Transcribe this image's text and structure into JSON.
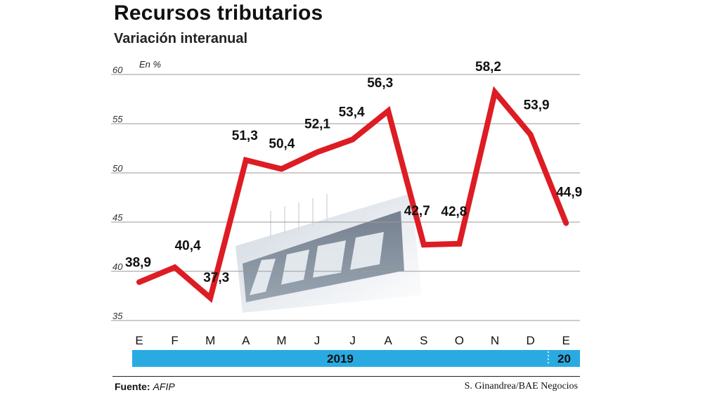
{
  "title": "Recursos tributarios",
  "subtitle": "Variación interanual",
  "unit_label": "En %",
  "footer": {
    "source_label": "Fuente:",
    "source_value": "AFIP",
    "credit": "S. Ginandrea/BAE Negocios"
  },
  "colors": {
    "line": "#dd1c24",
    "year_band": "#29abe2",
    "grid": "#9a9a9a",
    "text": "#111111"
  },
  "chart_data": {
    "type": "line",
    "title": "Recursos tributarios",
    "subtitle": "Variación interanual",
    "ylabel": "En %",
    "ylim": [
      35,
      60
    ],
    "yticks": [
      35,
      40,
      45,
      50,
      55,
      60
    ],
    "categories": [
      "E",
      "F",
      "M",
      "A",
      "M",
      "J",
      "J",
      "A",
      "S",
      "O",
      "N",
      "D",
      "E"
    ],
    "values": [
      38.9,
      40.4,
      37.3,
      51.3,
      50.4,
      52.1,
      53.4,
      56.3,
      42.7,
      42.8,
      58.2,
      53.9,
      44.9
    ],
    "value_labels": [
      "38,9",
      "40,4",
      "37,3",
      "51,3",
      "50,4",
      "52,1",
      "53,4",
      "56,3",
      "42,7",
      "42,8",
      "58,2",
      "53,9",
      "44,9"
    ],
    "year_groups": [
      {
        "label": "2019",
        "start": 0,
        "end": 11
      },
      {
        "label": "20",
        "start": 12,
        "end": 12
      }
    ],
    "grid": true,
    "background_image": "afip-building-sign"
  }
}
